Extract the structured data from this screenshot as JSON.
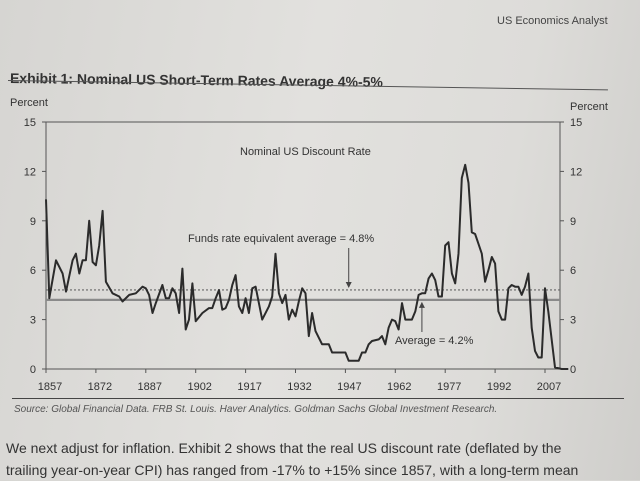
{
  "header": {
    "publication": "US Economics Analyst"
  },
  "exhibit": {
    "title": "Exhibit 1: Nominal US Short-Term Rates Average 4%-5%"
  },
  "chart_data": {
    "type": "line",
    "title": "Nominal US Discount Rate",
    "ylabel_left": "Percent",
    "ylabel_right": "Percent",
    "ylim": [
      0,
      15
    ],
    "yticks": [
      0,
      3,
      6,
      9,
      12,
      15
    ],
    "xlim": [
      1857,
      2014
    ],
    "xticks": [
      1857,
      1872,
      1887,
      1902,
      1917,
      1932,
      1947,
      1962,
      1977,
      1992,
      2007
    ],
    "grid": false,
    "reference_lines": [
      {
        "label": "Funds rate equivalent average = 4.8%",
        "value": 4.8,
        "style": "dotted"
      },
      {
        "label": "Average = 4.2%",
        "value": 4.2,
        "style": "solid"
      }
    ],
    "series": [
      {
        "color": "#2b2b2b",
        "x": [
          1857,
          1858,
          1860,
          1862,
          1863,
          1865,
          1866,
          1867,
          1868,
          1869,
          1870,
          1871,
          1872,
          1873,
          1874,
          1875,
          1877,
          1879,
          1880,
          1882,
          1884,
          1886,
          1887,
          1888,
          1889,
          1890,
          1892,
          1893,
          1894,
          1895,
          1896,
          1897,
          1898,
          1899,
          1900,
          1901,
          1902,
          1904,
          1906,
          1907,
          1908,
          1909,
          1910,
          1911,
          1912,
          1913,
          1914,
          1915,
          1916,
          1917,
          1918,
          1919,
          1920,
          1922,
          1924,
          1925,
          1926,
          1927,
          1928,
          1929,
          1930,
          1931,
          1932,
          1933,
          1934,
          1935,
          1936,
          1937,
          1938,
          1940,
          1942,
          1943,
          1947,
          1948,
          1951,
          1952,
          1953,
          1954,
          1955,
          1957,
          1958,
          1959,
          1960,
          1961,
          1962,
          1963,
          1964,
          1965,
          1967,
          1968,
          1969,
          1970,
          1971,
          1972,
          1973,
          1974,
          1975,
          1976,
          1977,
          1978,
          1979,
          1980,
          1981,
          1982,
          1983,
          1984,
          1985,
          1986,
          1987,
          1988,
          1989,
          1990,
          1991,
          1992,
          1993,
          1994,
          1995,
          1996,
          1997,
          1998,
          1999,
          2000,
          2001,
          2002,
          2003,
          2004,
          2005,
          2006,
          2007,
          2008,
          2010,
          2012,
          2014
        ],
        "values": [
          10.3,
          4.3,
          6.6,
          5.8,
          4.7,
          6.6,
          7.0,
          5.8,
          6.6,
          6.6,
          9.0,
          6.5,
          6.3,
          7.5,
          9.6,
          5.3,
          4.6,
          4.4,
          4.1,
          4.5,
          4.6,
          5.0,
          4.9,
          4.5,
          3.4,
          4.0,
          5.1,
          4.3,
          4.3,
          4.9,
          4.6,
          3.4,
          6.1,
          2.4,
          3.0,
          5.2,
          2.9,
          3.4,
          3.7,
          3.7,
          4.3,
          4.8,
          3.6,
          3.7,
          4.2,
          5.1,
          5.7,
          3.8,
          3.4,
          4.3,
          3.4,
          4.9,
          5.0,
          3.0,
          3.8,
          4.4,
          7.0,
          4.6,
          4.0,
          4.5,
          3.0,
          3.6,
          3.2,
          4.1,
          4.9,
          4.6,
          2.0,
          3.4,
          2.3,
          1.5,
          1.5,
          1.0,
          1.0,
          0.5,
          0.5,
          1.0,
          1.0,
          1.5,
          1.7,
          1.8,
          2.0,
          1.5,
          2.5,
          3.0,
          2.9,
          2.4,
          4.0,
          3.0,
          3.0,
          3.5,
          4.5,
          4.6,
          4.6,
          5.5,
          5.8,
          5.4,
          4.4,
          4.4,
          7.5,
          7.7,
          5.8,
          5.2,
          7.0,
          11.6,
          12.4,
          11.3,
          8.3,
          8.2,
          7.6,
          7.0,
          5.3,
          6.0,
          6.8,
          6.4,
          3.5,
          3.0,
          3.0,
          4.9,
          5.1,
          5.0,
          5.0,
          4.5,
          5.0,
          5.8,
          2.5,
          1.1,
          0.7,
          0.7,
          4.9,
          3.5,
          0.1,
          0.0,
          0.0
        ]
      }
    ]
  },
  "source": "Source: Global Financial Data. FRB St. Louis. Haver Analytics. Goldman Sachs Global Investment Research.",
  "body_text": [
    "We next adjust for inflation.  Exhibit 2 shows that the real US discount rate (deflated by the",
    "trailing year-on-year CPI) has ranged from -17% to +15% since 1857, with a long-term mean"
  ]
}
